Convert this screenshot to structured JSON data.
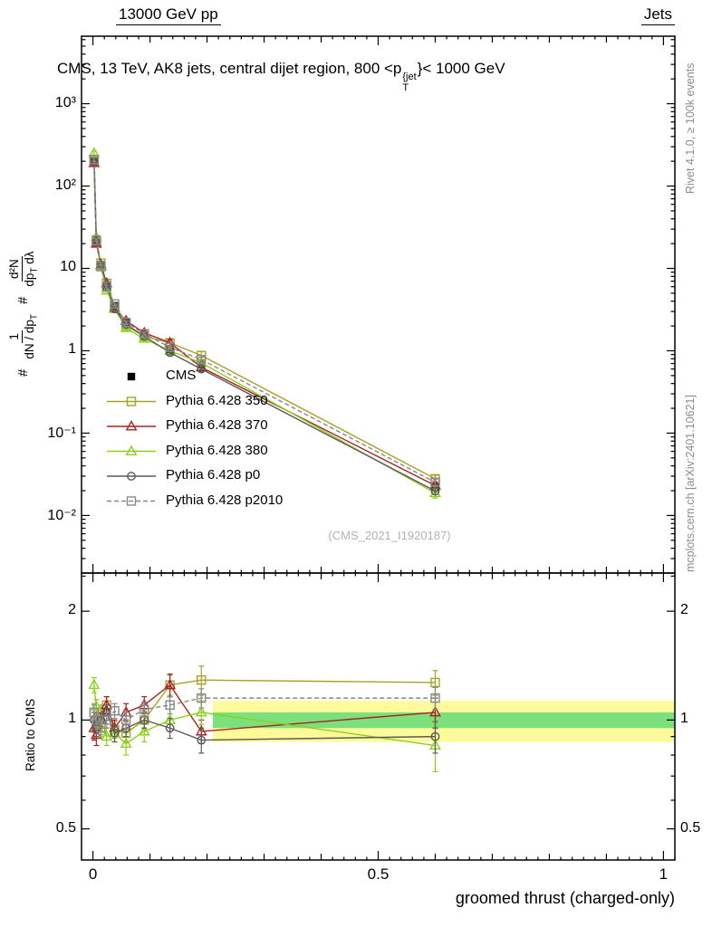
{
  "header": {
    "left": "13000 GeV pp",
    "right": "Jets"
  },
  "title": {
    "prefix": "CMS, 13 TeV, AK8 jets, central dijet region, 800 <p",
    "sup": "{jet",
    "sub": "T",
    "suffix": "}< 1000 GeV"
  },
  "ylabel_parts": {
    "hash1": "#",
    "num1": "1",
    "den1": "dN / dp",
    "den1sub": "T",
    "hash2": "#",
    "num2": "d²N",
    "den2": "dp",
    "den2sub": "T",
    "den2tail": " dλ"
  },
  "right_margin": {
    "top": "Rivet 4.1.0, ≥ 100k events",
    "bottom": "mcplots.cern.ch [arXiv:2401.10621]"
  },
  "watermark": "(CMS_2021_I1920187)",
  "chart_data": {
    "type": "line",
    "title": "CMS, 13 TeV, AK8 jets, central dijet region, 800 < pT{jet} < 1000 GeV",
    "xlabel": "groomed thrust (charged-only)",
    "ylabel": "1/(dN/dpT) d²N/(dpT dλ)",
    "legend_position": "left-middle",
    "grid": false,
    "xlim": [
      -0.02,
      1.02
    ],
    "x": [
      0.002,
      0.006,
      0.014,
      0.024,
      0.038,
      0.058,
      0.09,
      0.135,
      0.19,
      0.6
    ],
    "xticks": [
      {
        "v": 0,
        "label": "0"
      },
      {
        "v": 0.5,
        "label": "0.5"
      },
      {
        "v": 1,
        "label": "1"
      }
    ],
    "main": {
      "yscale": "log",
      "ylim": [
        0.002,
        6600
      ],
      "yticks": [
        {
          "v": 1000,
          "label": "10³"
        },
        {
          "v": 100,
          "label": "10²"
        },
        {
          "v": 10,
          "label": "10"
        },
        {
          "v": 1,
          "label": "1"
        },
        {
          "v": 0.1,
          "label": "10⁻¹"
        },
        {
          "v": 0.01,
          "label": "10⁻²"
        }
      ]
    },
    "ratio": {
      "label": "Ratio to CMS",
      "yscale": "log",
      "ylim": [
        0.41,
        2.55
      ],
      "yticks": [
        {
          "v": 2,
          "label": "2"
        },
        {
          "v": 1,
          "label": "1"
        },
        {
          "v": 0.5,
          "label": "0.5"
        }
      ],
      "yminor": [
        0.6,
        0.7,
        0.8,
        0.9,
        2.5
      ],
      "bands": {
        "x0": 0.21,
        "x1": 1.02,
        "yellow": [
          0.87,
          1.13
        ],
        "green": [
          0.95,
          1.05
        ],
        "yellow_color": "#fdfa9b",
        "green_color": "#7ce07c"
      }
    },
    "cms": {
      "name": "CMS",
      "color": "#000000",
      "marker": "square",
      "filled": true,
      "values": [
        200,
        22,
        11,
        6.0,
        3.5,
        2.2,
        1.5,
        1.0,
        0.68,
        0.022
      ],
      "rel_err": [
        0.02,
        0.02,
        0.02,
        0.03,
        0.03,
        0.03,
        0.04,
        0.04,
        0.05,
        0.12
      ]
    },
    "series": [
      {
        "name": "Pythia 6.428 350",
        "color": "#a8a226",
        "marker": "square",
        "dash": "",
        "values": [
          210,
          20.9,
          11.6,
          6.6,
          3.29,
          2.02,
          1.5,
          1.25,
          0.877,
          0.0279
        ],
        "ratio": [
          1.05,
          0.95,
          1.05,
          1.1,
          0.94,
          0.92,
          1.0,
          1.25,
          1.29,
          1.27
        ],
        "ratio_err": [
          0.06,
          0.05,
          0.05,
          0.06,
          0.05,
          0.05,
          0.06,
          0.08,
          0.12,
          0.1
        ]
      },
      {
        "name": "Pythia 6.428 370",
        "color": "#aa2222",
        "marker": "triangle",
        "dash": "",
        "values": [
          190,
          20.0,
          11.0,
          6.6,
          3.33,
          2.31,
          1.65,
          1.25,
          0.63,
          0.0231
        ],
        "ratio": [
          0.95,
          0.91,
          1.0,
          1.1,
          0.95,
          1.05,
          1.1,
          1.25,
          0.93,
          1.05
        ],
        "ratio_err": [
          0.07,
          0.06,
          0.05,
          0.06,
          0.05,
          0.06,
          0.06,
          0.09,
          0.07,
          0.1
        ]
      },
      {
        "name": "Pythia 6.428 380",
        "color": "#8bd11c",
        "marker": "triangle",
        "dash": "",
        "values": [
          250,
          24.0,
          10.5,
          5.4,
          3.22,
          1.89,
          1.4,
          1.0,
          0.714,
          0.0187
        ],
        "ratio": [
          1.25,
          1.09,
          0.95,
          0.9,
          0.92,
          0.86,
          0.93,
          1.0,
          1.05,
          0.85
        ],
        "ratio_err": [
          0.06,
          0.05,
          0.05,
          0.05,
          0.05,
          0.06,
          0.06,
          0.07,
          0.08,
          0.13
        ]
      },
      {
        "name": "Pythia 6.428 p0",
        "color": "#5a5a5a",
        "marker": "circle",
        "dash": "",
        "values": [
          200,
          20.9,
          11.0,
          6.3,
          3.22,
          2.09,
          1.5,
          0.95,
          0.6,
          0.0198
        ],
        "ratio": [
          1.0,
          0.95,
          1.0,
          1.05,
          0.92,
          0.95,
          1.0,
          0.95,
          0.88,
          0.9
        ],
        "ratio_err": [
          0.05,
          0.05,
          0.04,
          0.05,
          0.05,
          0.05,
          0.05,
          0.06,
          0.07,
          0.09
        ]
      },
      {
        "name": "Pythia 6.428 p2010",
        "color": "#888888",
        "marker": "square",
        "dash": "5,3",
        "values": [
          210,
          22.0,
          10.5,
          6.0,
          3.71,
          2.2,
          1.61,
          1.1,
          0.782,
          0.0253
        ],
        "ratio": [
          1.05,
          1.0,
          0.95,
          1.0,
          1.06,
          1.0,
          1.07,
          1.1,
          1.15,
          1.15
        ],
        "ratio_err": [
          0.05,
          0.04,
          0.04,
          0.05,
          0.05,
          0.05,
          0.05,
          0.06,
          0.07,
          0.08
        ]
      }
    ]
  }
}
